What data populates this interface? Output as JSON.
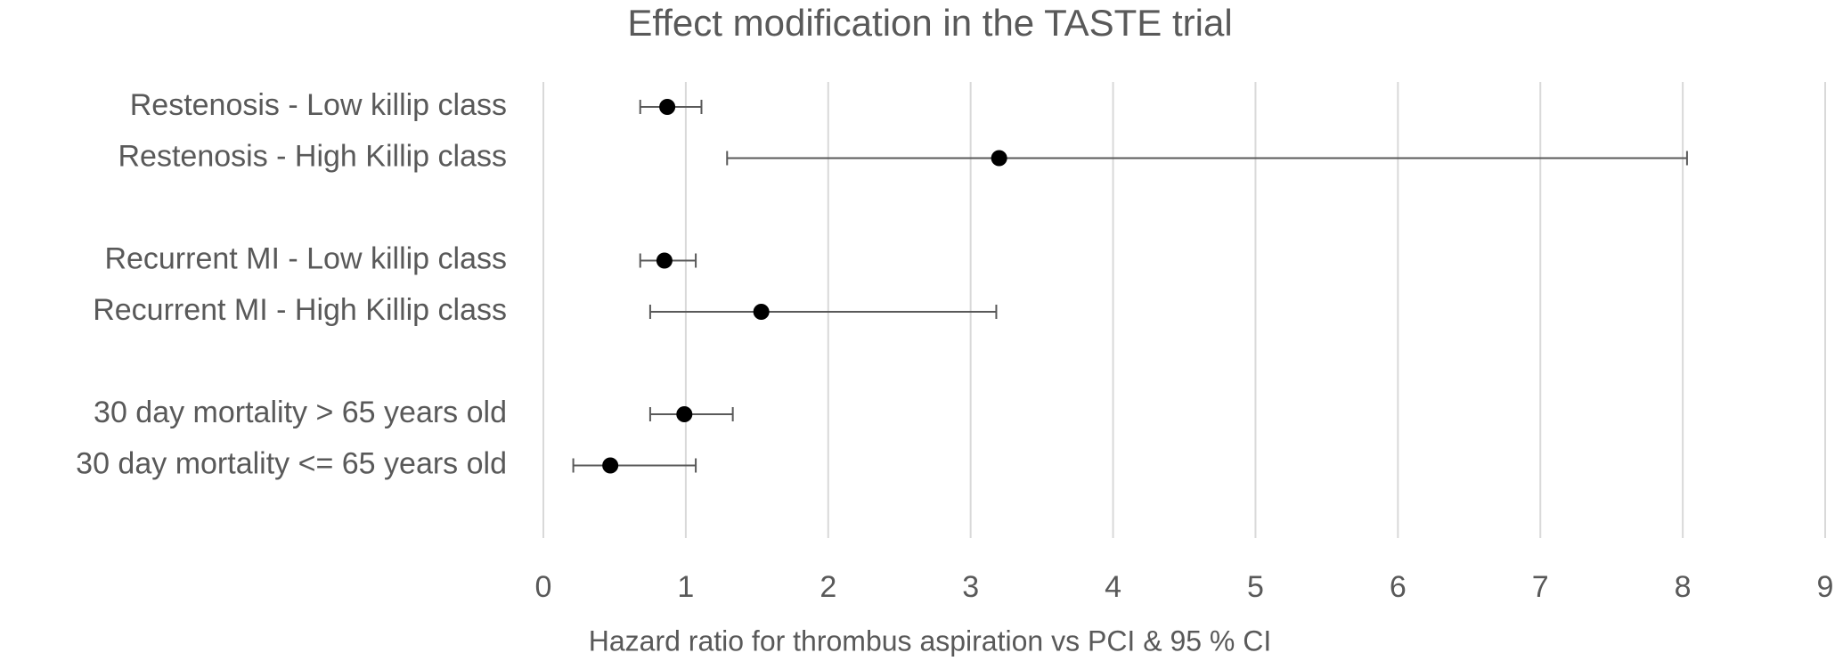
{
  "chart_data": {
    "type": "forest",
    "title": "Effect modification in the TASTE trial",
    "x_label": "Hazard ratio for thrombus aspiration vs PCI & 95 % CI",
    "categories": [
      "Restenosis - Low killip class",
      "Restenosis - High Killip class",
      null,
      "Recurrent MI - Low killip class",
      "Recurrent MI - High Killip class",
      null,
      "30 day mortality > 65 years old",
      "30 day mortality <= 65 years old"
    ],
    "values": [
      0.87,
      3.2,
      null,
      0.85,
      1.53,
      null,
      0.99,
      0.47
    ],
    "lower": [
      0.68,
      1.29,
      null,
      0.68,
      0.75,
      null,
      0.75,
      0.21
    ],
    "upper": [
      1.11,
      8.03,
      null,
      1.07,
      3.18,
      null,
      1.33,
      1.07
    ],
    "color": "#000000",
    "xlim": [
      0,
      9
    ],
    "xticks": [
      0,
      1,
      2,
      3,
      4,
      5,
      6,
      7,
      8,
      9
    ],
    "grid": true
  }
}
